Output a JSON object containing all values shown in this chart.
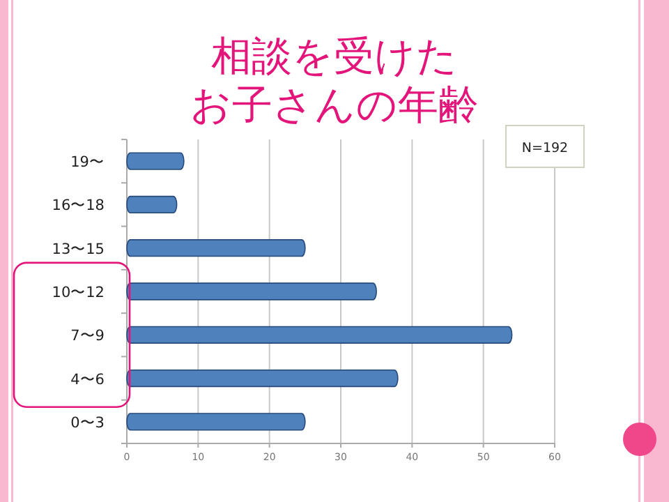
{
  "chart_data": {
    "type": "bar",
    "orientation": "horizontal",
    "title": "相談を受けた",
    "subtitle": "お子さんの年齢",
    "categories": [
      "19〜",
      "16〜18",
      "13〜15",
      "10〜12",
      "7〜9",
      "4〜6",
      "0〜3"
    ],
    "values": [
      8,
      7,
      25,
      35,
      54,
      38,
      25
    ],
    "color": "#4f81bd",
    "xlim": [
      0,
      60
    ],
    "xticks": [
      0,
      10,
      20,
      30,
      40,
      50,
      60
    ],
    "grid": "x",
    "annotations": [
      "N=192"
    ]
  }
}
